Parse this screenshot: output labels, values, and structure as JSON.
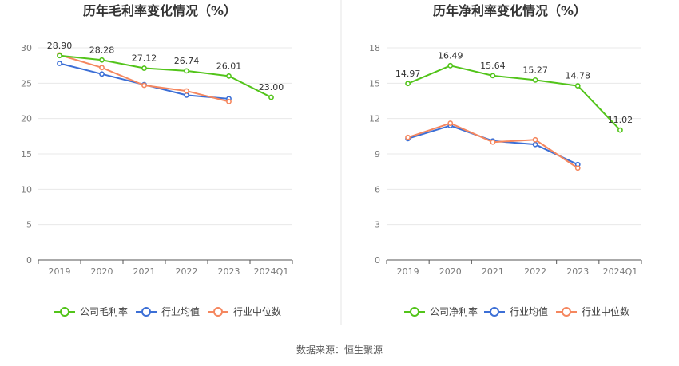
{
  "source_text": "数据来源：恒生聚源",
  "colors": {
    "company": "#52c41a",
    "industry_avg": "#3c6fd6",
    "industry_median": "#f5875f",
    "grid": "#e8e8e8",
    "axis": "#555555",
    "divider": "#e5e5e5"
  },
  "chart_data": [
    {
      "type": "line",
      "title": "历年毛利率变化情况（%）",
      "categories": [
        "2019",
        "2020",
        "2021",
        "2022",
        "2023",
        "2024Q1"
      ],
      "ylim": [
        0,
        30
      ],
      "yticks": [
        0,
        5,
        10,
        15,
        20,
        25,
        30
      ],
      "grid": true,
      "legend_position": "bottom",
      "series": [
        {
          "name": "公司毛利率",
          "color": "#52c41a",
          "labeled": true,
          "values": [
            28.9,
            28.28,
            27.12,
            26.74,
            26.01,
            23.0
          ],
          "labels": [
            "28.90",
            "28.28",
            "27.12",
            "26.74",
            "26.01",
            "23.00"
          ]
        },
        {
          "name": "行业均值",
          "color": "#3c6fd6",
          "labeled": false,
          "values": [
            27.8,
            26.3,
            24.8,
            23.3,
            22.8,
            null
          ]
        },
        {
          "name": "行业中位数",
          "color": "#f5875f",
          "labeled": false,
          "values": [
            29.0,
            27.2,
            24.7,
            23.9,
            22.4,
            null
          ]
        }
      ]
    },
    {
      "type": "line",
      "title": "历年净利率变化情况（%）",
      "categories": [
        "2019",
        "2020",
        "2021",
        "2022",
        "2023",
        "2024Q1"
      ],
      "ylim": [
        0,
        18
      ],
      "yticks": [
        0,
        3,
        6,
        9,
        12,
        15,
        18
      ],
      "grid": true,
      "legend_position": "bottom",
      "series": [
        {
          "name": "公司净利率",
          "color": "#52c41a",
          "labeled": true,
          "values": [
            14.97,
            16.49,
            15.64,
            15.27,
            14.78,
            11.02
          ],
          "labels": [
            "14.97",
            "16.49",
            "15.64",
            "15.27",
            "14.78",
            "11.02"
          ]
        },
        {
          "name": "行业均值",
          "color": "#3c6fd6",
          "labeled": false,
          "values": [
            10.3,
            11.4,
            10.1,
            9.8,
            8.1,
            null
          ]
        },
        {
          "name": "行业中位数",
          "color": "#f5875f",
          "labeled": false,
          "values": [
            10.4,
            11.6,
            10.0,
            10.2,
            7.8,
            null
          ]
        }
      ]
    }
  ]
}
